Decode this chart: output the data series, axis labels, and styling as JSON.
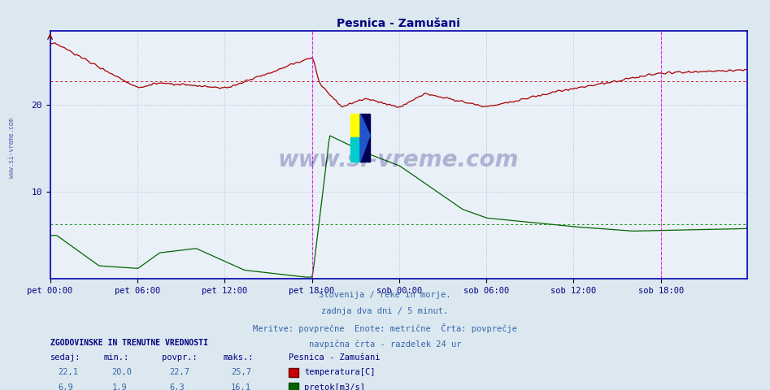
{
  "title": "Pesnica - Zamušani",
  "title_color": "#000080",
  "bg_color": "#dce8f0",
  "plot_bg_color": "#eaf0f8",
  "grid_color": "#b0b8cc",
  "xlabel_color": "#000080",
  "ylabel_color": "#000080",
  "x_tick_labels": [
    "pet 00:00",
    "pet 06:00",
    "pet 12:00",
    "pet 18:00",
    "sob 00:00",
    "sob 06:00",
    "sob 12:00",
    "sob 18:00"
  ],
  "x_tick_positions": [
    0,
    72,
    144,
    216,
    288,
    360,
    432,
    504
  ],
  "total_points": 576,
  "y_lim_min": 0,
  "y_lim_max": 28.5,
  "y_ticks": [
    10,
    20
  ],
  "temp_color": "#aa0000",
  "flow_color": "#006600",
  "avg_temp_color": "#cc0000",
  "avg_flow_color": "#008800",
  "vline_color": "#ee00ee",
  "vline_positions": [
    216,
    504
  ],
  "temp_avg": 22.7,
  "flow_avg": 6.3,
  "temp_min": 20.0,
  "temp_max": 25.7,
  "flow_min": 1.9,
  "flow_max": 16.1,
  "temp_current": 22.1,
  "flow_current": 6.9,
  "watermark": "www.si-vreme.com",
  "info_line1": "Slovenija / reke in morje.",
  "info_line2": "zadnja dva dni / 5 minut.",
  "info_line3": "Meritve: povprečne  Enote: metrične  Črta: povprečje",
  "info_line4": "navpična črta - razdelek 24 ur",
  "legend_title": "Pesnica - Zamušani",
  "legend_temp": "temperatura[C]",
  "legend_flow": "pretok[m3/s]",
  "left_label": "ZGODOVINSKE IN TRENUTNE VREDNOSTI",
  "col_sedaj": "sedaj:",
  "col_min": "min.:",
  "col_povpr": "povpr.:",
  "col_maks": "maks.:"
}
